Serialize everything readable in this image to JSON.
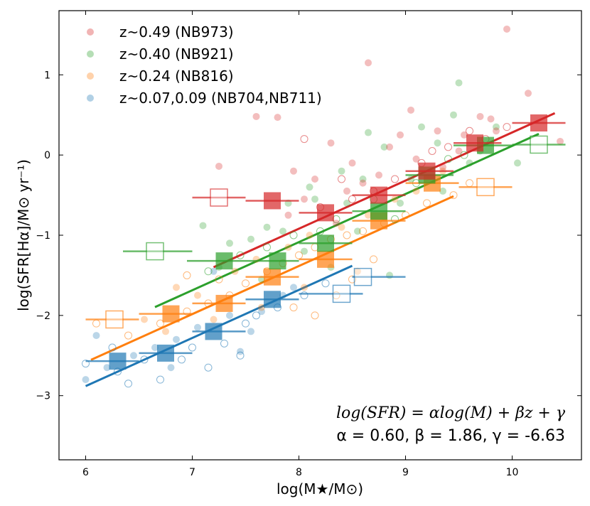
{
  "chart_data": {
    "type": "scatter",
    "xlabel": "log(M★/M⊙)",
    "ylabel": "log(SFR[Hα]/M⊙ yr⁻¹)",
    "xlim": [
      5.75,
      10.65
    ],
    "ylim": [
      -3.8,
      1.8
    ],
    "xticks": [
      6,
      7,
      8,
      9,
      10
    ],
    "yticks": [
      -3,
      -2,
      -1,
      0,
      1
    ],
    "xtick_labels": [
      "6",
      "7",
      "8",
      "9",
      "10"
    ],
    "ytick_labels": [
      "−3",
      "−2",
      "−1",
      "0",
      "1"
    ],
    "legend_position": "top-left",
    "annotation": {
      "equation": "log(SFR) = αlog(M) + βz + γ",
      "params": "α = 0.60, β = 1.86, γ = -6.63"
    },
    "series": [
      {
        "name": "z~0.49 (NB973)",
        "color": "#d62728",
        "z": 0.49,
        "fit_x": [
          7.2,
          10.4
        ],
        "filled_bins": [
          {
            "x": 7.75,
            "y": -0.57,
            "xerr_lo": 7.5,
            "xerr_hi": 8.0
          },
          {
            "x": 8.25,
            "y": -0.72,
            "xerr_lo": 8.0,
            "xerr_hi": 8.5
          },
          {
            "x": 8.75,
            "y": -0.5,
            "xerr_lo": 8.5,
            "xerr_hi": 9.0
          },
          {
            "x": 9.2,
            "y": -0.2,
            "xerr_lo": 9.0,
            "xerr_hi": 9.45
          },
          {
            "x": 9.65,
            "y": 0.15,
            "xerr_lo": 9.45,
            "xerr_hi": 9.9
          },
          {
            "x": 10.25,
            "y": 0.4,
            "xerr_lo": 10.0,
            "xerr_hi": 10.5
          }
        ],
        "open_bins": [
          {
            "x": 7.25,
            "y": -0.53,
            "xerr_lo": 7.0,
            "xerr_hi": 7.5
          }
        ],
        "filled_points": [
          {
            "x": 9.95,
            "y": 1.57
          },
          {
            "x": 8.65,
            "y": 1.15
          },
          {
            "x": 10.15,
            "y": 0.77
          },
          {
            "x": 9.7,
            "y": 0.48
          },
          {
            "x": 9.05,
            "y": 0.56
          },
          {
            "x": 7.6,
            "y": 0.48
          },
          {
            "x": 7.8,
            "y": 0.47
          },
          {
            "x": 10.45,
            "y": 0.17
          },
          {
            "x": 9.8,
            "y": 0.45
          },
          {
            "x": 8.95,
            "y": 0.25
          },
          {
            "x": 9.3,
            "y": 0.3
          },
          {
            "x": 8.3,
            "y": 0.15
          },
          {
            "x": 8.85,
            "y": 0.1
          },
          {
            "x": 9.5,
            "y": 0.05
          },
          {
            "x": 8.5,
            "y": -0.1
          },
          {
            "x": 7.25,
            "y": -0.14
          },
          {
            "x": 7.95,
            "y": -0.2
          },
          {
            "x": 8.15,
            "y": -0.3
          },
          {
            "x": 8.6,
            "y": -0.35
          },
          {
            "x": 8.05,
            "y": -0.55
          },
          {
            "x": 8.45,
            "y": -0.45
          },
          {
            "x": 9.1,
            "y": -0.05
          },
          {
            "x": 9.55,
            "y": 0.25
          },
          {
            "x": 8.75,
            "y": -0.25
          },
          {
            "x": 7.9,
            "y": -0.75
          },
          {
            "x": 8.35,
            "y": -0.85
          },
          {
            "x": 9.35,
            "y": -0.15
          },
          {
            "x": 9.85,
            "y": 0.3
          }
        ],
        "open_points": [
          {
            "x": 9.6,
            "y": 0.3
          },
          {
            "x": 9.4,
            "y": 0.1
          },
          {
            "x": 9.15,
            "y": -0.1
          },
          {
            "x": 8.9,
            "y": -0.3
          },
          {
            "x": 8.7,
            "y": -0.45
          },
          {
            "x": 8.5,
            "y": -0.55
          },
          {
            "x": 8.2,
            "y": -0.65
          },
          {
            "x": 9.75,
            "y": 0.2
          },
          {
            "x": 8.05,
            "y": 0.2
          },
          {
            "x": 9.95,
            "y": 0.35
          },
          {
            "x": 8.4,
            "y": -0.3
          },
          {
            "x": 9.25,
            "y": 0.05
          }
        ]
      },
      {
        "name": "z~0.40 (NB921)",
        "color": "#2ca02c",
        "z": 0.4,
        "fit_x": [
          6.65,
          10.25
        ],
        "filled_bins": [
          {
            "x": 7.3,
            "y": -1.32,
            "xerr_lo": 6.95,
            "xerr_hi": 7.5
          },
          {
            "x": 7.8,
            "y": -1.32,
            "xerr_lo": 7.5,
            "xerr_hi": 8.0
          },
          {
            "x": 8.25,
            "y": -1.1,
            "xerr_lo": 8.0,
            "xerr_hi": 8.5
          },
          {
            "x": 8.75,
            "y": -0.7,
            "xerr_lo": 8.5,
            "xerr_hi": 9.0
          },
          {
            "x": 9.2,
            "y": -0.25,
            "xerr_lo": 9.0,
            "xerr_hi": 9.45
          },
          {
            "x": 9.75,
            "y": 0.12,
            "xerr_lo": 9.45,
            "xerr_hi": 10.0
          }
        ],
        "open_bins": [
          {
            "x": 6.65,
            "y": -1.2,
            "xerr_lo": 6.35,
            "xerr_hi": 7.0
          },
          {
            "x": 10.25,
            "y": 0.13,
            "xerr_lo": 10.0,
            "xerr_hi": 10.5
          }
        ],
        "filled_points": [
          {
            "x": 9.5,
            "y": 0.9
          },
          {
            "x": 9.45,
            "y": 0.5
          },
          {
            "x": 9.15,
            "y": 0.35
          },
          {
            "x": 8.65,
            "y": 0.28
          },
          {
            "x": 8.8,
            "y": 0.1
          },
          {
            "x": 9.85,
            "y": 0.35
          },
          {
            "x": 10.05,
            "y": -0.1
          },
          {
            "x": 8.4,
            "y": -0.2
          },
          {
            "x": 8.1,
            "y": -0.4
          },
          {
            "x": 7.9,
            "y": -0.6
          },
          {
            "x": 7.7,
            "y": -0.9
          },
          {
            "x": 7.55,
            "y": -1.05
          },
          {
            "x": 7.35,
            "y": -1.1
          },
          {
            "x": 7.1,
            "y": -0.88
          },
          {
            "x": 7.25,
            "y": -1.4
          },
          {
            "x": 8.55,
            "y": -0.95
          },
          {
            "x": 8.95,
            "y": -0.6
          },
          {
            "x": 9.35,
            "y": -0.45
          },
          {
            "x": 9.6,
            "y": -0.1
          },
          {
            "x": 8.3,
            "y": -1.4
          },
          {
            "x": 8.85,
            "y": -1.5
          },
          {
            "x": 8.05,
            "y": -1.2
          },
          {
            "x": 7.65,
            "y": -1.55
          },
          {
            "x": 8.15,
            "y": -0.55
          },
          {
            "x": 9.05,
            "y": -0.3
          },
          {
            "x": 8.45,
            "y": -0.6
          },
          {
            "x": 7.85,
            "y": -0.95
          },
          {
            "x": 9.3,
            "y": 0.15
          },
          {
            "x": 8.6,
            "y": -0.3
          },
          {
            "x": 9.7,
            "y": 0.05
          }
        ],
        "open_points": [
          {
            "x": 7.45,
            "y": -1.25
          },
          {
            "x": 7.95,
            "y": -1.0
          },
          {
            "x": 8.35,
            "y": -0.8
          },
          {
            "x": 8.7,
            "y": -0.55
          },
          {
            "x": 9.1,
            "y": -0.35
          },
          {
            "x": 9.55,
            "y": 0.0
          },
          {
            "x": 7.15,
            "y": -1.45
          },
          {
            "x": 8.9,
            "y": -0.8
          },
          {
            "x": 9.4,
            "y": -0.05
          },
          {
            "x": 8.2,
            "y": -0.95
          },
          {
            "x": 7.7,
            "y": -1.15
          }
        ]
      },
      {
        "name": "z~0.24 (NB816)",
        "color": "#ff7f0e",
        "z": 0.24,
        "fit_x": [
          6.05,
          9.45
        ],
        "filled_bins": [
          {
            "x": 6.8,
            "y": -1.98,
            "xerr_lo": 6.5,
            "xerr_hi": 7.0
          },
          {
            "x": 7.3,
            "y": -1.85,
            "xerr_lo": 7.0,
            "xerr_hi": 7.5
          },
          {
            "x": 7.75,
            "y": -1.52,
            "xerr_lo": 7.5,
            "xerr_hi": 8.0
          },
          {
            "x": 8.25,
            "y": -1.3,
            "xerr_lo": 8.0,
            "xerr_hi": 8.5
          },
          {
            "x": 8.75,
            "y": -0.82,
            "xerr_lo": 8.5,
            "xerr_hi": 9.0
          },
          {
            "x": 9.25,
            "y": -0.35,
            "xerr_lo": 9.0,
            "xerr_hi": 9.5
          }
        ],
        "open_bins": [
          {
            "x": 6.27,
            "y": -2.05,
            "xerr_lo": 6.0,
            "xerr_hi": 6.5
          },
          {
            "x": 9.75,
            "y": -0.4,
            "xerr_lo": 9.5,
            "xerr_hi": 10.0
          }
        ],
        "filled_points": [
          {
            "x": 6.55,
            "y": -2.05
          },
          {
            "x": 6.85,
            "y": -1.65
          },
          {
            "x": 7.05,
            "y": -1.75
          },
          {
            "x": 7.4,
            "y": -1.45
          },
          {
            "x": 7.6,
            "y": -1.3
          },
          {
            "x": 7.9,
            "y": -1.15
          },
          {
            "x": 8.1,
            "y": -1.0
          },
          {
            "x": 8.4,
            "y": -0.9
          },
          {
            "x": 8.65,
            "y": -0.75
          },
          {
            "x": 8.9,
            "y": -0.55
          },
          {
            "x": 9.1,
            "y": -0.45
          },
          {
            "x": 9.35,
            "y": -0.2
          },
          {
            "x": 7.65,
            "y": -1.9
          },
          {
            "x": 8.05,
            "y": -1.65
          },
          {
            "x": 8.55,
            "y": -1.45
          },
          {
            "x": 6.75,
            "y": -2.2
          },
          {
            "x": 7.2,
            "y": -2.05
          }
        ],
        "open_points": [
          {
            "x": 6.1,
            "y": -2.1
          },
          {
            "x": 6.4,
            "y": -2.25
          },
          {
            "x": 6.7,
            "y": -2.1
          },
          {
            "x": 6.95,
            "y": -1.95
          },
          {
            "x": 7.15,
            "y": -1.85
          },
          {
            "x": 7.35,
            "y": -1.75
          },
          {
            "x": 7.5,
            "y": -1.6
          },
          {
            "x": 7.7,
            "y": -1.45
          },
          {
            "x": 7.85,
            "y": -1.35
          },
          {
            "x": 8.0,
            "y": -1.25
          },
          {
            "x": 8.15,
            "y": -1.15
          },
          {
            "x": 8.3,
            "y": -1.05
          },
          {
            "x": 8.45,
            "y": -1.0
          },
          {
            "x": 8.6,
            "y": -0.95
          },
          {
            "x": 8.8,
            "y": -0.85
          },
          {
            "x": 9.0,
            "y": -0.75
          },
          {
            "x": 9.2,
            "y": -0.6
          },
          {
            "x": 9.45,
            "y": -0.5
          },
          {
            "x": 7.95,
            "y": -1.9
          },
          {
            "x": 8.15,
            "y": -2.0
          },
          {
            "x": 8.35,
            "y": -1.75
          },
          {
            "x": 8.5,
            "y": -1.55
          },
          {
            "x": 8.7,
            "y": -1.3
          },
          {
            "x": 9.6,
            "y": -0.35
          },
          {
            "x": 7.25,
            "y": -1.55
          },
          {
            "x": 6.95,
            "y": -1.5
          }
        ]
      },
      {
        "name": "z~0.07,0.09 (NB704,NB711)",
        "color": "#1f77b4",
        "z": 0.08,
        "fit_x": [
          6.0,
          8.5
        ],
        "filled_bins": [
          {
            "x": 6.3,
            "y": -2.57,
            "xerr_lo": 6.0,
            "xerr_hi": 6.5
          },
          {
            "x": 6.75,
            "y": -2.47,
            "xerr_lo": 6.5,
            "xerr_hi": 7.0
          },
          {
            "x": 7.2,
            "y": -2.2,
            "xerr_lo": 7.0,
            "xerr_hi": 7.5
          },
          {
            "x": 7.75,
            "y": -1.8,
            "xerr_lo": 7.5,
            "xerr_hi": 8.0
          }
        ],
        "open_bins": [
          {
            "x": 8.4,
            "y": -1.73,
            "xerr_lo": 8.0,
            "xerr_hi": 8.6
          },
          {
            "x": 8.6,
            "y": -1.52,
            "xerr_lo": 8.5,
            "xerr_hi": 9.0
          }
        ],
        "filled_points": [
          {
            "x": 6.0,
            "y": -2.8
          },
          {
            "x": 6.2,
            "y": -2.65
          },
          {
            "x": 6.45,
            "y": -2.5
          },
          {
            "x": 6.65,
            "y": -2.4
          },
          {
            "x": 6.85,
            "y": -2.3
          },
          {
            "x": 7.05,
            "y": -2.15
          },
          {
            "x": 7.2,
            "y": -1.45
          },
          {
            "x": 7.35,
            "y": -2.0
          },
          {
            "x": 7.45,
            "y": -2.45
          },
          {
            "x": 7.55,
            "y": -2.2
          },
          {
            "x": 7.65,
            "y": -1.95
          },
          {
            "x": 7.85,
            "y": -1.75
          },
          {
            "x": 7.95,
            "y": -1.65
          },
          {
            "x": 6.8,
            "y": -2.65
          },
          {
            "x": 6.1,
            "y": -2.25
          }
        ],
        "open_points": [
          {
            "x": 6.0,
            "y": -2.6
          },
          {
            "x": 6.3,
            "y": -2.7
          },
          {
            "x": 6.55,
            "y": -2.55
          },
          {
            "x": 6.7,
            "y": -2.8
          },
          {
            "x": 6.9,
            "y": -2.55
          },
          {
            "x": 7.0,
            "y": -2.4
          },
          {
            "x": 7.15,
            "y": -2.65
          },
          {
            "x": 7.3,
            "y": -2.35
          },
          {
            "x": 7.5,
            "y": -2.1
          },
          {
            "x": 7.6,
            "y": -2.0
          },
          {
            "x": 7.8,
            "y": -1.9
          },
          {
            "x": 8.05,
            "y": -1.75
          },
          {
            "x": 8.25,
            "y": -1.6
          },
          {
            "x": 6.4,
            "y": -2.85
          },
          {
            "x": 7.45,
            "y": -2.5
          },
          {
            "x": 6.25,
            "y": -2.4
          }
        ]
      }
    ]
  }
}
